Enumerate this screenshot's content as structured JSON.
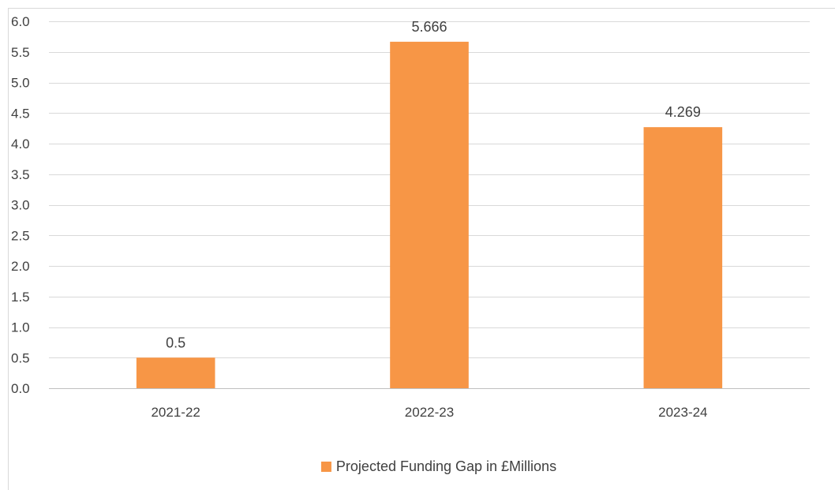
{
  "chart_data": {
    "type": "bar",
    "categories": [
      "2021-22",
      "2022-23",
      "2023-24"
    ],
    "series": [
      {
        "name": "Projected Funding Gap in £Millions",
        "values": [
          0.5,
          5.666,
          4.269
        ],
        "color": "#F79646"
      }
    ],
    "data_labels": [
      "0.5",
      "5.666",
      "4.269"
    ],
    "y_ticks": [
      "0.0",
      "0.5",
      "1.0",
      "1.5",
      "2.0",
      "2.5",
      "3.0",
      "3.5",
      "4.0",
      "4.5",
      "5.0",
      "5.5",
      "6.0"
    ],
    "ylim": [
      0,
      6
    ],
    "grid": true,
    "legend_position": "bottom",
    "title": "",
    "xlabel": "",
    "ylabel": "",
    "gridline_color": "#d9d9d9",
    "text_color": "#404040"
  }
}
